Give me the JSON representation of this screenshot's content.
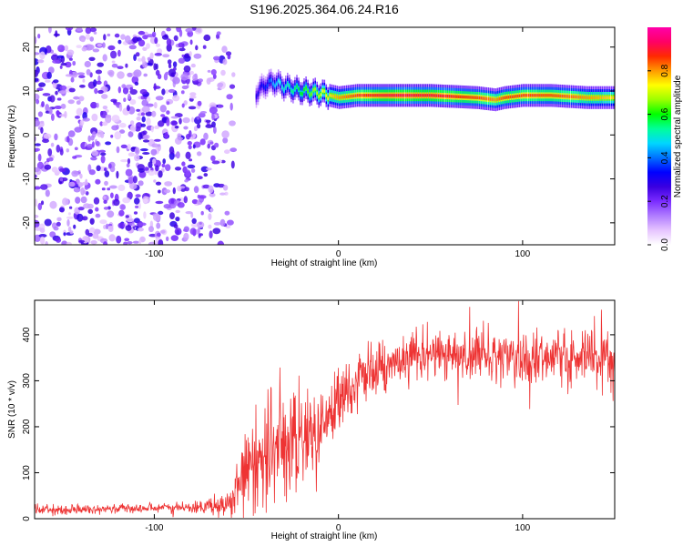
{
  "chart_data": [
    {
      "type": "heatmap",
      "title": "S196.2025.364.06.24.R16",
      "xlabel": "Height of straight line (km)",
      "ylabel": "Frequency (Hz)",
      "xlim": [
        -165,
        150
      ],
      "ylim": [
        -25,
        24.5
      ],
      "xticks": [
        -100,
        0,
        100
      ],
      "yticks": [
        -20,
        -10,
        0,
        10,
        20
      ],
      "colorbar": {
        "label": "Normalized spectral amplitude",
        "range": [
          0,
          1
        ],
        "ticks": [
          0.0,
          0.2,
          0.4,
          0.6,
          0.8
        ],
        "colormap": [
          "#ffffff",
          "#e6c4ff",
          "#b07cff",
          "#7b2cff",
          "#3a00e0",
          "#0000ff",
          "#0070ff",
          "#00d6ff",
          "#00ff9a",
          "#00ff00",
          "#9aff00",
          "#ffff00",
          "#ff9a00",
          "#ff2a00",
          "#ff0066",
          "#ff00aa"
        ]
      },
      "ridge": {
        "description_points_x": [
          -45,
          -40,
          -35,
          -30,
          -25,
          -20,
          -15,
          -10,
          -5,
          0,
          10,
          25,
          50,
          75,
          85,
          90,
          100,
          115,
          135,
          150
        ],
        "frequency_hz": [
          9.5,
          11.5,
          12,
          11,
          10.5,
          10,
          9.8,
          9.5,
          9,
          8.5,
          9,
          9,
          9,
          8.5,
          8,
          8.5,
          9,
          9,
          8.5,
          8.5
        ],
        "peak_amplitude": [
          0.3,
          0.35,
          0.45,
          0.5,
          0.55,
          0.6,
          0.65,
          0.7,
          0.75,
          0.8,
          0.85,
          0.9,
          0.9,
          0.85,
          0.8,
          0.85,
          0.85,
          0.85,
          0.8,
          0.75
        ]
      },
      "noise_region_x": [
        -165,
        -65
      ],
      "noise_amplitude_range": [
        0.05,
        0.3
      ]
    },
    {
      "type": "line",
      "xlabel": "Height of straight line (km)",
      "ylabel": "SNR (10 * v/v)",
      "xlim": [
        -165,
        150
      ],
      "ylim": [
        0,
        475
      ],
      "xticks": [
        -100,
        0,
        100
      ],
      "yticks": [
        0,
        100,
        200,
        300,
        400
      ],
      "series": [
        {
          "name": "SNR",
          "color": "#ee3333",
          "x": [
            -165,
            -140,
            -120,
            -100,
            -80,
            -70,
            -60,
            -55,
            -50,
            -45,
            -40,
            -35,
            -30,
            -25,
            -20,
            -15,
            -10,
            -5,
            0,
            10,
            20,
            30,
            40,
            50,
            60,
            80,
            100,
            120,
            140,
            150
          ],
          "y": [
            20,
            20,
            22,
            24,
            25,
            28,
            30,
            60,
            95,
            130,
            140,
            150,
            150,
            160,
            170,
            180,
            200,
            230,
            260,
            295,
            320,
            340,
            350,
            355,
            360,
            360,
            350,
            355,
            350,
            355
          ],
          "noise_amplitude": [
            5,
            5,
            5,
            5,
            6,
            8,
            15,
            30,
            45,
            55,
            60,
            60,
            55,
            55,
            50,
            50,
            45,
            40,
            35,
            30,
            30,
            30,
            30,
            30,
            30,
            30,
            30,
            30,
            30,
            30
          ]
        }
      ]
    }
  ]
}
